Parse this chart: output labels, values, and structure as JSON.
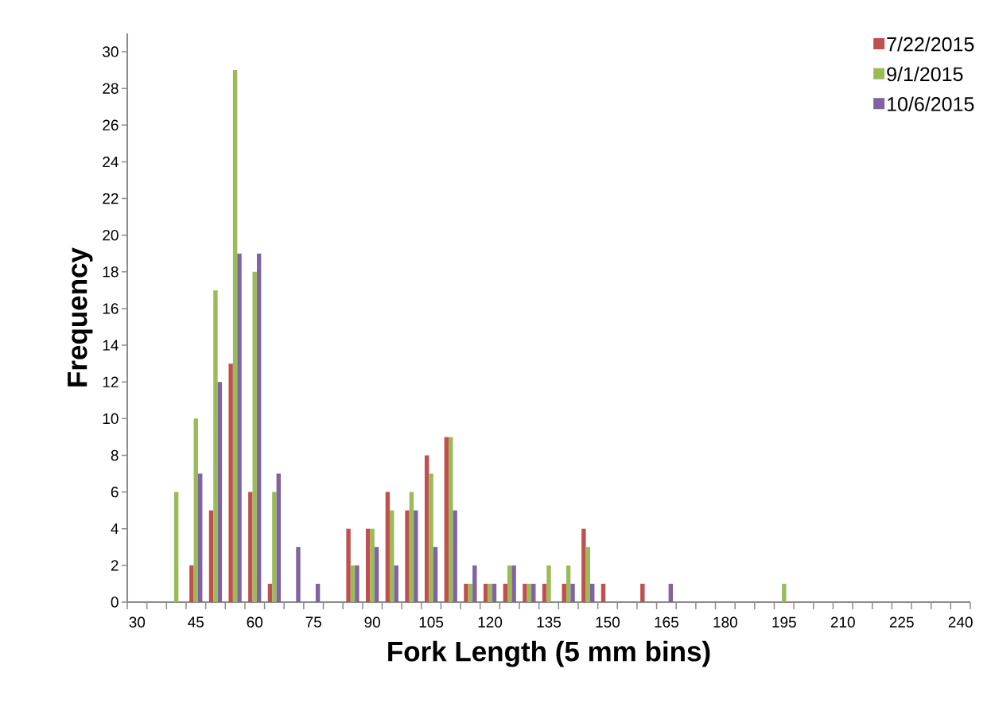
{
  "chart_data": {
    "type": "bar",
    "xlabel": "Fork Length (5 mm bins)",
    "ylabel": "Frequency",
    "categories": [
      "30",
      null,
      null,
      "45",
      null,
      null,
      "60",
      null,
      null,
      "75",
      null,
      null,
      "90",
      null,
      null,
      "105",
      null,
      null,
      "120",
      null,
      null,
      "135",
      null,
      null,
      "150",
      null,
      null,
      "165",
      null,
      null,
      "180",
      null,
      null,
      "195",
      null,
      null,
      "210",
      null,
      null,
      "225",
      null,
      null,
      "240"
    ],
    "series": [
      {
        "name": "7/22/2015",
        "color": "#c0504d",
        "values": [
          0,
          0,
          0,
          2,
          5,
          13,
          6,
          1,
          0,
          0,
          0,
          4,
          4,
          6,
          5,
          8,
          9,
          1,
          1,
          1,
          1,
          1,
          1,
          4,
          1,
          0,
          1,
          0,
          0,
          0,
          0,
          0,
          0,
          0,
          0,
          0,
          0,
          0,
          0,
          0,
          0,
          0,
          0
        ]
      },
      {
        "name": "9/1/2015",
        "color": "#9bbb59",
        "values": [
          0,
          0,
          6,
          10,
          17,
          29,
          18,
          6,
          0,
          0,
          0,
          2,
          4,
          5,
          6,
          7,
          9,
          1,
          1,
          2,
          1,
          2,
          2,
          3,
          0,
          0,
          0,
          0,
          0,
          0,
          0,
          0,
          0,
          1,
          0,
          0,
          0,
          0,
          0,
          0,
          0,
          0,
          0
        ]
      },
      {
        "name": "10/6/2015",
        "color": "#8064a2",
        "values": [
          0,
          0,
          0,
          7,
          12,
          19,
          19,
          7,
          3,
          1,
          0,
          2,
          3,
          2,
          5,
          3,
          5,
          2,
          1,
          2,
          1,
          0,
          1,
          1,
          0,
          0,
          0,
          1,
          0,
          0,
          0,
          0,
          0,
          0,
          0,
          0,
          0,
          0,
          0,
          0,
          0,
          0,
          0
        ]
      }
    ],
    "ylim": [
      0,
      31
    ],
    "yticks": [
      0,
      2,
      4,
      6,
      8,
      10,
      12,
      14,
      16,
      18,
      20,
      22,
      24,
      26,
      28,
      30
    ],
    "grid": false,
    "legend": "top right"
  }
}
